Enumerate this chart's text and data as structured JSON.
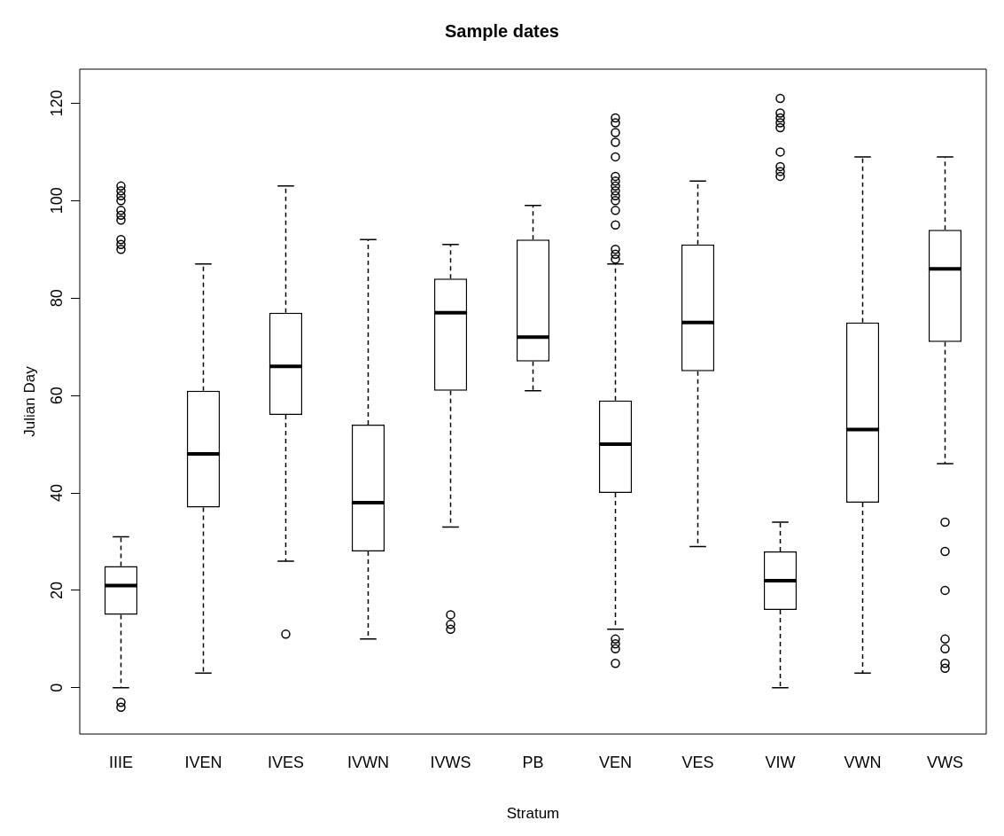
{
  "chart_data": {
    "type": "box",
    "title": "Sample dates",
    "xlabel": "Stratum",
    "ylabel": "Julian Day",
    "categories": [
      "IIIE",
      "IVEN",
      "IVES",
      "IVWN",
      "IVWS",
      "PB",
      "VEN",
      "VES",
      "VIW",
      "VWN",
      "VWS"
    ],
    "ylim": [
      -9.5,
      127
    ],
    "yticks": [
      0,
      20,
      40,
      60,
      80,
      100,
      120
    ],
    "grid": false,
    "color": "#000000",
    "boxes": [
      {
        "low": 0,
        "q1": 15,
        "median": 21,
        "q3": 25,
        "high": 31,
        "outliers": [
          -3,
          -4,
          90,
          91,
          92,
          96,
          97,
          98,
          100,
          101,
          102,
          103
        ]
      },
      {
        "low": 3,
        "q1": 37,
        "median": 48,
        "q3": 61,
        "high": 87
      },
      {
        "low": 26,
        "q1": 56,
        "median": 66,
        "q3": 77,
        "high": 103,
        "outliers": [
          11
        ]
      },
      {
        "low": 10,
        "q1": 28,
        "median": 38,
        "q3": 54,
        "high": 92
      },
      {
        "low": 33,
        "q1": 61,
        "median": 77,
        "q3": 84,
        "high": 91,
        "outliers": [
          12,
          13,
          15
        ]
      },
      {
        "low": 61,
        "q1": 67,
        "median": 72,
        "q3": 92,
        "high": 99
      },
      {
        "low": 12,
        "q1": 40,
        "median": 50,
        "q3": 59,
        "high": 87,
        "outliers": [
          5,
          8,
          9,
          10,
          88,
          89,
          90,
          95,
          98,
          100,
          101,
          102,
          103,
          104,
          105,
          109,
          112,
          114,
          116,
          117
        ]
      },
      {
        "low": 29,
        "q1": 65,
        "median": 75,
        "q3": 91,
        "high": 104
      },
      {
        "low": 0,
        "q1": 16,
        "median": 22,
        "q3": 28,
        "high": 34,
        "outliers": [
          105,
          106,
          107,
          110,
          115,
          116,
          117,
          118,
          121
        ]
      },
      {
        "low": 3,
        "q1": 38,
        "median": 53,
        "q3": 75,
        "high": 109
      },
      {
        "low": 46,
        "q1": 71,
        "median": 86,
        "q3": 94,
        "high": 109,
        "outliers": [
          4,
          5,
          8,
          10,
          20,
          28,
          34
        ]
      }
    ]
  }
}
